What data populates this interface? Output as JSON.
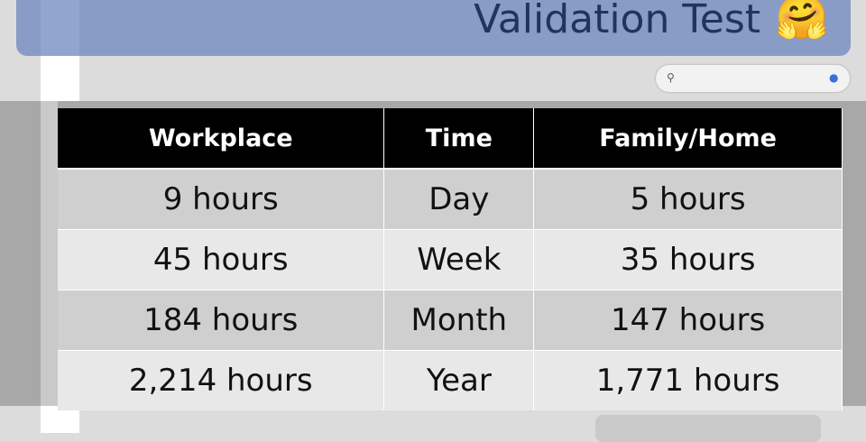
{
  "header": {
    "title": "Validation Test",
    "icon": "🤗"
  },
  "table": {
    "columns": [
      "Workplace",
      "Time",
      "Family/Home"
    ],
    "rows": [
      [
        "9 hours",
        "Day",
        "5 hours"
      ],
      [
        "45 hours",
        "Week",
        "35 hours"
      ],
      [
        "184 hours",
        "Month",
        "147 hours"
      ],
      [
        "2,214 hours",
        "Year",
        "1,771 hours"
      ]
    ]
  }
}
